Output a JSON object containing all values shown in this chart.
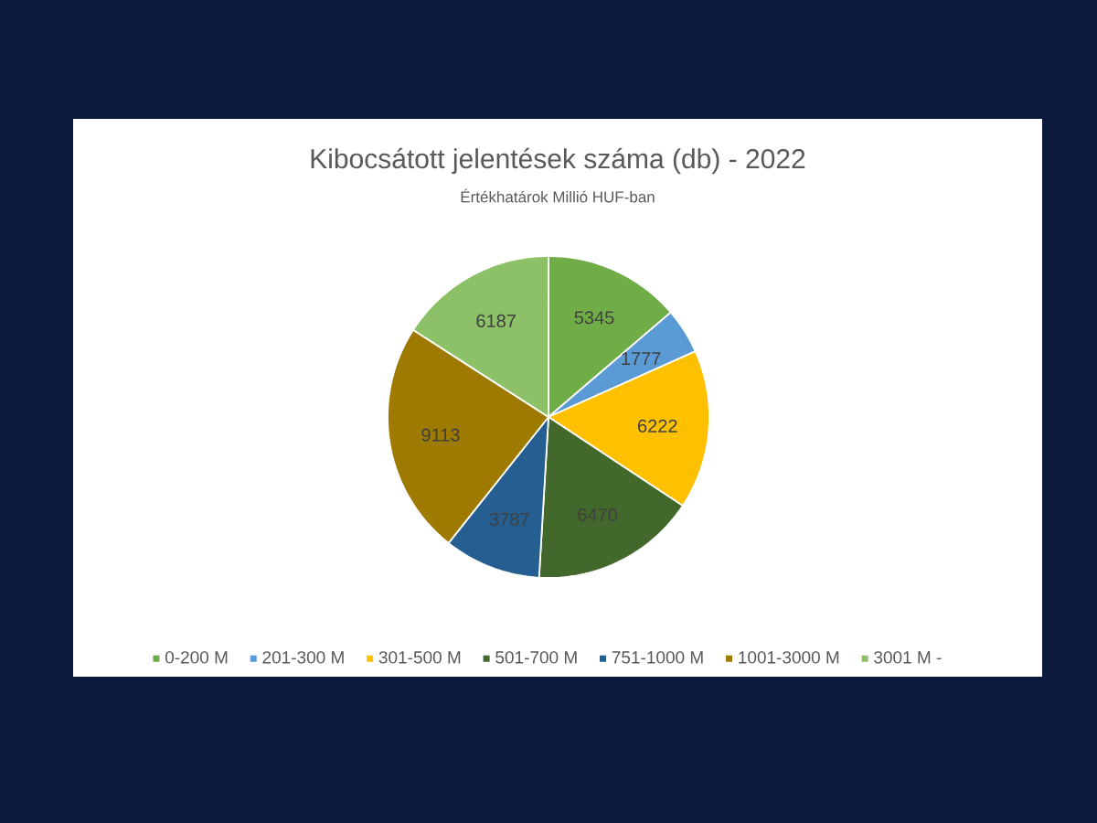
{
  "chart_data": {
    "type": "pie",
    "title": "Kibocsátott jelentések száma (db) - 2022",
    "subtitle": "Értékhatárok Millió HUF-ban",
    "categories": [
      "0-200 M",
      "201-300 M",
      "301-500 M",
      "501-700 M",
      "751-1000 M",
      "1001-3000 M",
      "3001 M -"
    ],
    "values": [
      5345,
      1777,
      6222,
      6470,
      3787,
      9113,
      6187
    ],
    "colors": [
      "#70ad47",
      "#5b9bd5",
      "#ffc000",
      "#43682b",
      "#255e91",
      "#9e7a00",
      "#8cc168"
    ],
    "data_labels": true,
    "legend": "bottom"
  }
}
